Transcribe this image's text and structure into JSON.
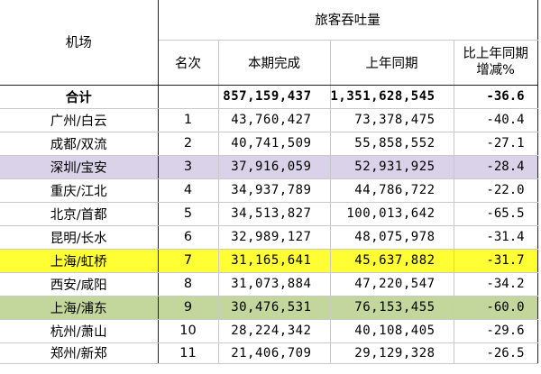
{
  "header": {
    "airport_label": "机场",
    "throughput_label": "旅客吞吐量",
    "rank_label": "名次",
    "current_label": "本期完成",
    "last_year_label": "上年同期",
    "change_label_line1": "比上年同期",
    "change_label_line2": "增减%"
  },
  "total": {
    "label": "合计",
    "current": "857,159,437",
    "last_year": "1,351,628,545",
    "change": "-36.6"
  },
  "rows": [
    {
      "airport": "广州/白云",
      "rank": "1",
      "current": "43,760,427",
      "last_year": "73,378,475",
      "change": "-40.4",
      "highlight": ""
    },
    {
      "airport": "成都/双流",
      "rank": "2",
      "current": "40,741,509",
      "last_year": "55,858,552",
      "change": "-27.1",
      "highlight": ""
    },
    {
      "airport": "深圳/宝安",
      "rank": "3",
      "current": "37,916,059",
      "last_year": "52,931,925",
      "change": "-28.4",
      "highlight": "#d9d2e9"
    },
    {
      "airport": "重庆/江北",
      "rank": "4",
      "current": "34,937,789",
      "last_year": "44,786,722",
      "change": "-22.0",
      "highlight": ""
    },
    {
      "airport": "北京/首都",
      "rank": "5",
      "current": "34,513,827",
      "last_year": "100,013,642",
      "change": "-65.5",
      "highlight": ""
    },
    {
      "airport": "昆明/长水",
      "rank": "6",
      "current": "32,989,127",
      "last_year": "48,075,978",
      "change": "-31.4",
      "highlight": ""
    },
    {
      "airport": "上海/虹桥",
      "rank": "7",
      "current": "31,165,641",
      "last_year": "45,637,882",
      "change": "-31.7",
      "highlight": "#ffff33"
    },
    {
      "airport": "西安/咸阳",
      "rank": "8",
      "current": "31,073,884",
      "last_year": "47,220,547",
      "change": "-34.2",
      "highlight": ""
    },
    {
      "airport": "上海/浦东",
      "rank": "9",
      "current": "30,476,531",
      "last_year": "76,153,455",
      "change": "-60.0",
      "highlight": "#c3d69b"
    },
    {
      "airport": "杭州/萧山",
      "rank": "10",
      "current": "28,224,342",
      "last_year": "40,108,405",
      "change": "-29.6",
      "highlight": ""
    },
    {
      "airport": "郑州/新郑",
      "rank": "11",
      "current": "21,406,709",
      "last_year": "29,129,328",
      "change": "-26.5",
      "highlight": ""
    }
  ]
}
